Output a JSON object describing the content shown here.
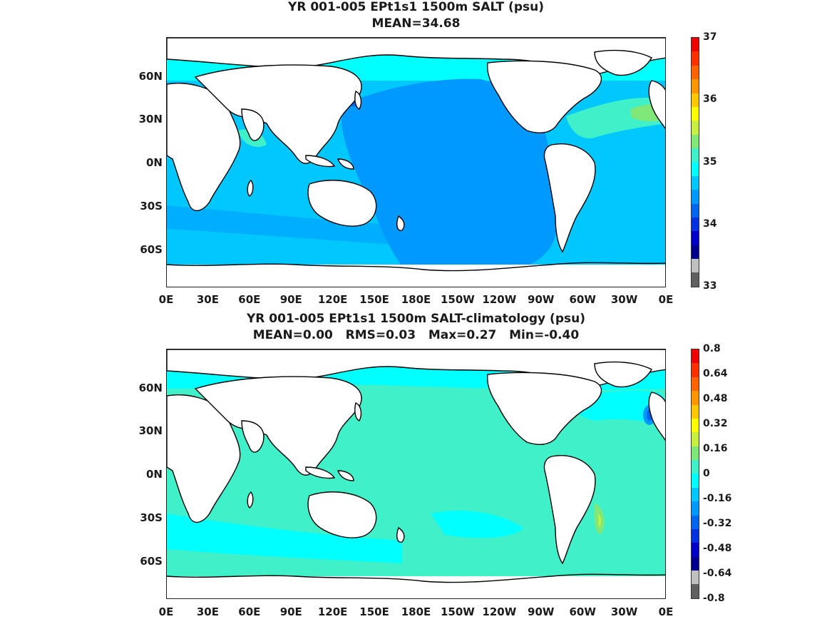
{
  "maps": [
    {
      "title_line1": "YR 001-005 EPt1s1 1500m SALT (psu)",
      "title_line2": "MEAN=34.68",
      "lat_ticks": [
        "60N",
        "30N",
        "0N",
        "30S",
        "60S"
      ],
      "lon_ticks": [
        "0E",
        "30E",
        "60E",
        "90E",
        "120E",
        "150E",
        "180E",
        "150W",
        "120W",
        "90W",
        "60W",
        "30W",
        "0E"
      ],
      "colorbar": {
        "labels": [
          "37",
          "36",
          "35",
          "34",
          "33"
        ],
        "colors": [
          "#606060",
          "#c0c0c0",
          "#00008c",
          "#0000c8",
          "#0030e0",
          "#0066f0",
          "#0099ff",
          "#00c8ff",
          "#00ffff",
          "#40f0c8",
          "#80e878",
          "#c8f040",
          "#ffff00",
          "#ffc800",
          "#ff9600",
          "#ff6400",
          "#ff3000",
          "#ee0000"
        ]
      }
    },
    {
      "title_line1": "YR 001-005 EPt1s1 1500m SALT-climatology (psu)",
      "title_line2": "MEAN=0.00   RMS=0.03   Max=0.27   Min=-0.40",
      "lat_ticks": [
        "60N",
        "30N",
        "0N",
        "30S",
        "60S"
      ],
      "lon_ticks": [
        "0E",
        "30E",
        "60E",
        "90E",
        "120E",
        "150E",
        "180E",
        "150W",
        "120W",
        "90W",
        "60W",
        "30W",
        "0E"
      ],
      "colorbar": {
        "labels": [
          "0.8",
          "0.64",
          "0.48",
          "0.32",
          "0.16",
          "0",
          "-0.16",
          "-0.32",
          "-0.48",
          "-0.64",
          "-0.8"
        ],
        "colors": [
          "#606060",
          "#c0c0c0",
          "#00008c",
          "#0000c8",
          "#0030e0",
          "#0066f0",
          "#0099ff",
          "#00c8ff",
          "#00ffff",
          "#40f0c8",
          "#80e878",
          "#c8f040",
          "#ffff00",
          "#ffc800",
          "#ff9600",
          "#ff6400",
          "#ff3000",
          "#ee0000"
        ]
      }
    }
  ]
}
